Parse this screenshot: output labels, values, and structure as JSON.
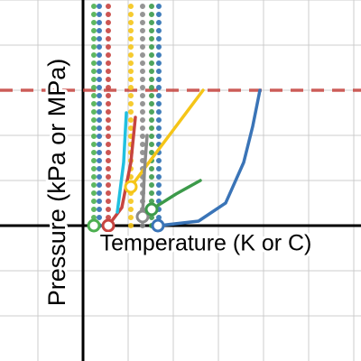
{
  "chart_data": {
    "type": "line",
    "x_label": "Temperature (K or C)",
    "y_label": "Pressure (kPa or MPa)",
    "xlim": [
      -1.84,
      6.16
    ],
    "ylim": [
      -3,
      5
    ],
    "xticks": [
      -1,
      0,
      1,
      2,
      3,
      4,
      5,
      6
    ],
    "yticks": [
      -2,
      -1,
      0,
      1,
      2,
      3,
      4,
      5
    ],
    "grid": true,
    "hline": {
      "value": 3,
      "color": "#c74440"
    },
    "series": [
      {
        "color": "#4caf50",
        "style": "dotted",
        "x": [
          0.24,
          0.24
        ],
        "values": [
          0,
          5
        ]
      },
      {
        "color": "#2d70b3",
        "style": "dotted",
        "x": [
          0.36,
          0.36
        ],
        "values": [
          0,
          5
        ]
      },
      {
        "color": "#c74440",
        "style": "dotted",
        "x": [
          0.56,
          0.56
        ],
        "values": [
          0,
          5
        ]
      },
      {
        "color": "#f5c518",
        "style": "dotted",
        "x": [
          1.06,
          1.06
        ],
        "values": [
          0,
          5
        ]
      },
      {
        "color": "#8a8a8a",
        "style": "dotted",
        "x": [
          1.32,
          1.32
        ],
        "values": [
          0,
          5
        ]
      },
      {
        "color": "#3c9a4a",
        "style": "dotted",
        "x": [
          1.52,
          1.52
        ],
        "values": [
          0,
          5
        ]
      },
      {
        "color": "#2d70b3",
        "style": "dotted",
        "x": [
          1.68,
          1.68
        ],
        "values": [
          0,
          5
        ]
      },
      {
        "color": "#3a74b7",
        "style": "solid",
        "x": [
          1.68,
          2.56,
          3.16,
          3.56,
          3.76,
          3.92
        ],
        "values": [
          0,
          0.1,
          0.5,
          1.4,
          2.2,
          3
        ]
      },
      {
        "color": "#3c9a4a",
        "style": "solid",
        "x": [
          1.52,
          2.06,
          2.6
        ],
        "values": [
          0.36,
          0.7,
          1.0
        ]
      },
      {
        "color": "#f5c518",
        "style": "solid",
        "x": [
          1.06,
          1.46,
          2.06,
          2.66
        ],
        "values": [
          0.86,
          1.4,
          2.2,
          3
        ]
      },
      {
        "color": "#8a8a8a",
        "style": "solid",
        "x": [
          1.32,
          1.36,
          1.42
        ],
        "values": [
          0.2,
          1.2,
          2
        ]
      },
      {
        "color": "#c74440",
        "style": "solid",
        "x": [
          0.56,
          0.86,
          1.06,
          1.16
        ],
        "values": [
          0,
          0.4,
          1.4,
          2.4
        ]
      },
      {
        "color": "#20c0e0",
        "style": "solid",
        "x": [
          0.76,
          0.9,
          0.96
        ],
        "values": [
          0.3,
          1.4,
          2.5
        ]
      }
    ],
    "points": [
      {
        "color": "#4caf50",
        "x": 0.24,
        "y": 0
      },
      {
        "color": "#c74440",
        "x": 0.56,
        "y": 0
      },
      {
        "color": "#f5c518",
        "x": 1.06,
        "y": 0.86
      },
      {
        "color": "#8a8a8a",
        "x": 1.32,
        "y": 0.2
      },
      {
        "color": "#3c9a4a",
        "x": 1.52,
        "y": 0.36
      },
      {
        "color": "#3a74b7",
        "x": 1.66,
        "y": 0
      }
    ]
  }
}
